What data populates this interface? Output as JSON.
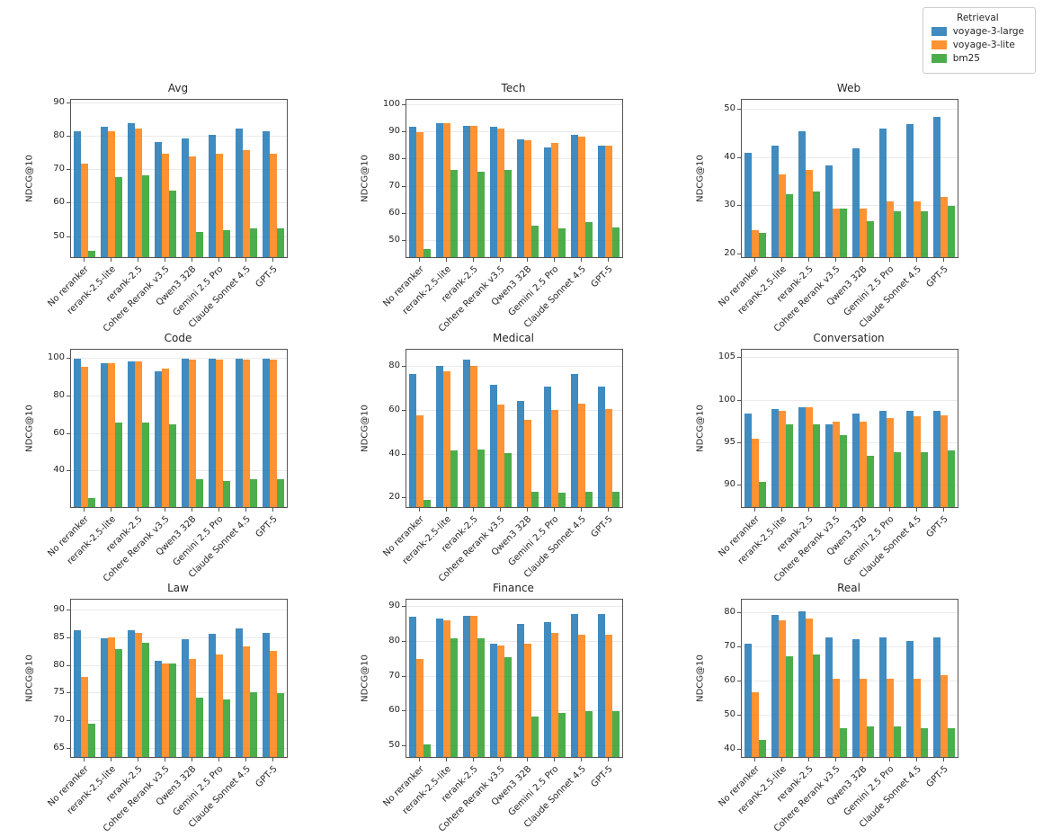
{
  "legend": {
    "title": "Retrieval",
    "entries": [
      {
        "label": "voyage-3-large",
        "color": "#1f77b4"
      },
      {
        "label": "voyage-3-lite",
        "color": "#ff7f0e"
      },
      {
        "label": "bm25",
        "color": "#2ca02c"
      }
    ]
  },
  "categories": [
    "No reranker",
    "rerank-2.5-lite",
    "rerank-2.5",
    "Cohere Rerank v3.5",
    "Qwen3 32B",
    "Gemini 2.5 Pro",
    "Claude Sonnet 4.5",
    "GPT-5"
  ],
  "chart_data": [
    {
      "type": "bar",
      "title": "Avg",
      "ylabel": "NDCG@10",
      "ylim": [
        44,
        91
      ],
      "yticks": [
        50,
        60,
        70,
        80,
        90
      ],
      "grid": true,
      "series": [
        {
          "name": "voyage-3-large",
          "values": [
            81.5,
            83,
            84,
            78.5,
            79.5,
            80.5,
            82.5,
            81.5
          ]
        },
        {
          "name": "voyage-3-lite",
          "values": [
            72,
            81.5,
            82.5,
            75,
            74,
            75,
            76,
            75
          ]
        },
        {
          "name": "bm25",
          "values": [
            46,
            68,
            68.5,
            64,
            51.5,
            52,
            52.5,
            52.5
          ]
        }
      ]
    },
    {
      "type": "bar",
      "title": "Tech",
      "ylabel": "NDCG@10",
      "ylim": [
        44,
        102
      ],
      "yticks": [
        50,
        60,
        70,
        80,
        90,
        100
      ],
      "grid": true,
      "series": [
        {
          "name": "voyage-3-large",
          "values": [
            92,
            93.5,
            92.5,
            92,
            87.5,
            84.5,
            89,
            85
          ]
        },
        {
          "name": "voyage-3-lite",
          "values": [
            90,
            93.5,
            92.5,
            91.5,
            87,
            86,
            88.5,
            85
          ]
        },
        {
          "name": "bm25",
          "values": [
            47,
            76,
            75.5,
            76,
            55.5,
            54.5,
            57,
            55
          ]
        }
      ]
    },
    {
      "type": "bar",
      "title": "Web",
      "ylabel": "NDCG@10",
      "ylim": [
        19.5,
        52
      ],
      "yticks": [
        20,
        30,
        40,
        50
      ],
      "grid": true,
      "series": [
        {
          "name": "voyage-3-large",
          "values": [
            41,
            42.5,
            45.5,
            38.5,
            42,
            46,
            47,
            48.5
          ]
        },
        {
          "name": "voyage-3-lite",
          "values": [
            25,
            36.5,
            37.5,
            29.5,
            29.5,
            31,
            31,
            32
          ]
        },
        {
          "name": "bm25",
          "values": [
            24.5,
            32.5,
            33,
            29.5,
            27,
            29,
            29,
            30
          ]
        }
      ]
    },
    {
      "type": "bar",
      "title": "Code",
      "ylabel": "NDCG@10",
      "ylim": [
        21,
        105
      ],
      "yticks": [
        40,
        60,
        80,
        100
      ],
      "grid": true,
      "series": [
        {
          "name": "voyage-3-large",
          "values": [
            100,
            98,
            99,
            93.5,
            100,
            100,
            100,
            100
          ]
        },
        {
          "name": "voyage-3-lite",
          "values": [
            96,
            98,
            99,
            95,
            99.5,
            99.5,
            99.5,
            99.5
          ]
        },
        {
          "name": "bm25",
          "values": [
            26,
            66,
            66,
            65,
            36,
            35,
            36,
            36
          ]
        }
      ]
    },
    {
      "type": "bar",
      "title": "Medical",
      "ylabel": "NDCG@10",
      "ylim": [
        16,
        88
      ],
      "yticks": [
        20,
        40,
        60,
        80
      ],
      "grid": true,
      "series": [
        {
          "name": "voyage-3-large",
          "values": [
            77,
            80.5,
            83.5,
            72,
            64.5,
            71,
            77,
            71
          ]
        },
        {
          "name": "voyage-3-lite",
          "values": [
            58,
            78,
            80.5,
            63,
            56,
            60.5,
            63.5,
            61
          ]
        },
        {
          "name": "bm25",
          "values": [
            19.5,
            42,
            42.5,
            40.5,
            23,
            22.5,
            23,
            23
          ]
        }
      ]
    },
    {
      "type": "bar",
      "title": "Conversation",
      "ylabel": "NDCG@10",
      "ylim": [
        87.5,
        106
      ],
      "yticks": [
        90,
        95,
        100,
        105
      ],
      "grid": true,
      "series": [
        {
          "name": "voyage-3-large",
          "values": [
            98.5,
            99,
            99.2,
            97.2,
            98.5,
            98.8,
            98.8,
            98.8
          ]
        },
        {
          "name": "voyage-3-lite",
          "values": [
            95.5,
            98.8,
            99.2,
            97.5,
            97.5,
            98,
            98.2,
            98.3
          ]
        },
        {
          "name": "bm25",
          "values": [
            90.5,
            97.2,
            97.2,
            96,
            93.5,
            94,
            94,
            94.2
          ]
        }
      ]
    },
    {
      "type": "bar",
      "title": "Law",
      "ylabel": "NDCG@10",
      "ylim": [
        63.5,
        92
      ],
      "yticks": [
        65,
        70,
        75,
        80,
        85,
        90
      ],
      "grid": true,
      "series": [
        {
          "name": "voyage-3-large",
          "values": [
            86.5,
            85,
            86.5,
            81,
            84.8,
            85.8,
            86.8,
            86
          ]
        },
        {
          "name": "voyage-3-lite",
          "values": [
            78,
            85.2,
            86,
            80.5,
            81.2,
            82,
            83.5,
            82.8
          ]
        },
        {
          "name": "bm25",
          "values": [
            69.5,
            83,
            84.2,
            80.5,
            74.2,
            74,
            75.2,
            75
          ]
        }
      ]
    },
    {
      "type": "bar",
      "title": "Finance",
      "ylabel": "NDCG@10",
      "ylim": [
        47,
        92
      ],
      "yticks": [
        50,
        60,
        70,
        80,
        90
      ],
      "grid": true,
      "series": [
        {
          "name": "voyage-3-large",
          "values": [
            87,
            86.5,
            87.5,
            79.5,
            85,
            85.5,
            88,
            88
          ]
        },
        {
          "name": "voyage-3-lite",
          "values": [
            75,
            86,
            87.5,
            79,
            79.5,
            82.5,
            82,
            82
          ]
        },
        {
          "name": "bm25",
          "values": [
            50.5,
            81,
            81,
            75.5,
            58.5,
            59.5,
            60,
            60
          ]
        }
      ]
    },
    {
      "type": "bar",
      "title": "Real",
      "ylabel": "NDCG@10",
      "ylim": [
        38,
        84
      ],
      "yticks": [
        40,
        50,
        60,
        70,
        80
      ],
      "grid": true,
      "series": [
        {
          "name": "voyage-3-large",
          "values": [
            71,
            79.5,
            80.5,
            73,
            72.5,
            73,
            72,
            73
          ]
        },
        {
          "name": "voyage-3-lite",
          "values": [
            57,
            78,
            78.5,
            61,
            61,
            61,
            61,
            62
          ]
        },
        {
          "name": "bm25",
          "values": [
            43,
            67.5,
            68,
            46.5,
            47,
            47,
            46.5,
            46.5
          ]
        }
      ]
    }
  ]
}
